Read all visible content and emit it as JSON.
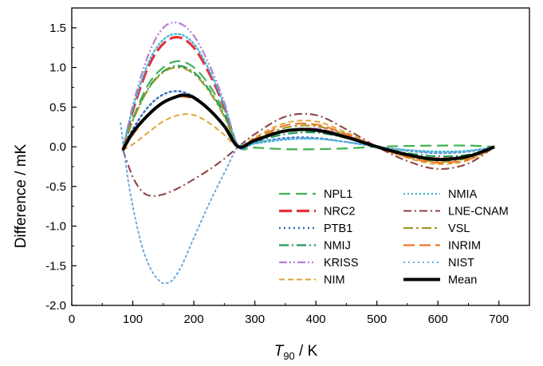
{
  "chart_data": {
    "type": "line",
    "xlabel": "T",
    "xlabel_sub": "90",
    "xlabel_unit": " / K",
    "ylabel": "Difference / mK",
    "xlim": [
      0,
      750
    ],
    "ylim": [
      -2.0,
      1.75
    ],
    "xticks": [
      0,
      100,
      200,
      300,
      400,
      500,
      600,
      700
    ],
    "yticks": [
      -2.0,
      -1.5,
      -1.0,
      -0.5,
      0.0,
      0.5,
      1.0,
      1.5
    ],
    "xtick_labels": [
      "0",
      "100",
      "200",
      "300",
      "400",
      "500",
      "600",
      "700"
    ],
    "ytick_labels": [
      "-2.0",
      "-1.5",
      "-1.0",
      "-0.5",
      "0.0",
      "0.5",
      "1.0",
      "1.5"
    ],
    "grid": false,
    "legend_placement": "bottom-right",
    "series": [
      {
        "name": "NPL1",
        "color": "#3fb34f",
        "dash": "14,7",
        "width": 2.2,
        "x": [
          83.8,
          100,
          125,
          150,
          175,
          200,
          225,
          250,
          273.16,
          300,
          350,
          400,
          450,
          500,
          550,
          600,
          650,
          692.7
        ],
        "y": [
          -0.04,
          0.35,
          0.78,
          1.0,
          1.08,
          1.0,
          0.78,
          0.44,
          0.0,
          -0.01,
          -0.03,
          -0.03,
          -0.02,
          0.0,
          0.01,
          0.015,
          0.015,
          0.0
        ]
      },
      {
        "name": "NRC2",
        "color": "#e8303a",
        "dash": "16,6",
        "width": 3.2,
        "x": [
          83.8,
          100,
          125,
          150,
          175,
          200,
          225,
          250,
          273.16,
          300,
          350,
          400,
          450,
          500,
          550,
          600,
          650,
          692.7
        ],
        "y": [
          -0.04,
          0.45,
          1.0,
          1.3,
          1.38,
          1.25,
          0.93,
          0.5,
          0.0,
          0.08,
          0.2,
          0.22,
          0.13,
          0.0,
          -0.1,
          -0.15,
          -0.12,
          0.0
        ]
      },
      {
        "name": "PTB1",
        "color": "#2f6fbd",
        "dash": "2,4",
        "width": 2.4,
        "x": [
          83.8,
          100,
          125,
          150,
          175,
          200,
          225,
          250,
          273.16,
          300,
          350,
          400,
          450,
          500,
          550,
          600,
          650,
          692.7
        ],
        "y": [
          -0.04,
          0.22,
          0.5,
          0.66,
          0.7,
          0.63,
          0.47,
          0.26,
          0.0,
          0.05,
          0.11,
          0.11,
          0.06,
          0.0,
          -0.05,
          -0.08,
          -0.06,
          0.0
        ]
      },
      {
        "name": "NMIJ",
        "color": "#1f9a56",
        "dash": "12,4,2,4",
        "width": 2.2,
        "x": [
          83.8,
          100,
          125,
          150,
          175,
          200,
          225,
          250,
          273.16,
          300,
          350,
          400,
          450,
          500,
          550,
          600,
          650,
          692.7
        ],
        "y": [
          -0.04,
          0.33,
          0.73,
          0.95,
          1.02,
          0.94,
          0.72,
          0.4,
          0.0,
          0.06,
          0.16,
          0.18,
          0.11,
          0.0,
          -0.08,
          -0.12,
          -0.1,
          0.0
        ]
      },
      {
        "name": "KRISS",
        "color": "#b77fd1",
        "dash": "10,3,2,3,2,3",
        "width": 2.2,
        "x": [
          83.8,
          100,
          125,
          150,
          175,
          200,
          225,
          250,
          273.16,
          300,
          350,
          400,
          450,
          500,
          550,
          600,
          650,
          692.7
        ],
        "y": [
          -0.04,
          0.52,
          1.15,
          1.5,
          1.56,
          1.4,
          1.04,
          0.56,
          0.0,
          0.07,
          0.2,
          0.23,
          0.14,
          0.0,
          -0.11,
          -0.17,
          -0.13,
          0.0
        ]
      },
      {
        "name": "NIM",
        "color": "#e0a53a",
        "dash": "7,4",
        "width": 2.0,
        "x": [
          83.8,
          100,
          125,
          150,
          175,
          200,
          225,
          250,
          273.16,
          300,
          350,
          400,
          450,
          500,
          550,
          600,
          650,
          692.7
        ],
        "y": [
          -0.04,
          0.03,
          0.18,
          0.32,
          0.4,
          0.4,
          0.3,
          0.15,
          0.0,
          0.12,
          0.3,
          0.32,
          0.18,
          0.0,
          -0.14,
          -0.22,
          -0.17,
          0.0
        ]
      },
      {
        "name": "NMIA",
        "color": "#3fb5d3",
        "dash": "2,3",
        "width": 2.2,
        "x": [
          83.8,
          100,
          125,
          150,
          175,
          200,
          225,
          250,
          273.16,
          300,
          350,
          400,
          450,
          500,
          550,
          600,
          650,
          692.7
        ],
        "y": [
          -0.04,
          0.48,
          1.05,
          1.35,
          1.42,
          1.3,
          0.97,
          0.52,
          0.0,
          0.04,
          0.09,
          0.1,
          0.06,
          0.0,
          -0.04,
          -0.06,
          -0.05,
          0.0
        ]
      },
      {
        "name": "LNE-CNAM",
        "color": "#8b3d3d",
        "dash": "10,4,2,4",
        "width": 2.0,
        "x": [
          83.8,
          100,
          115,
          130,
          150,
          175,
          200,
          225,
          250,
          273.16,
          300,
          350,
          400,
          450,
          500,
          550,
          600,
          650,
          692.7
        ],
        "y": [
          -0.04,
          -0.38,
          -0.56,
          -0.62,
          -0.6,
          -0.52,
          -0.41,
          -0.29,
          -0.15,
          0.0,
          0.16,
          0.38,
          0.4,
          0.22,
          0.0,
          -0.18,
          -0.28,
          -0.21,
          0.0
        ]
      },
      {
        "name": "VSL",
        "color": "#9a9a2a",
        "dash": "12,4,3,4",
        "width": 2.2,
        "x": [
          83.8,
          100,
          125,
          150,
          175,
          200,
          225,
          250,
          273.16,
          300,
          350,
          400,
          450,
          500,
          550,
          600,
          650,
          692.7
        ],
        "y": [
          -0.04,
          0.33,
          0.72,
          0.94,
          1.0,
          0.92,
          0.7,
          0.38,
          0.0,
          0.09,
          0.24,
          0.26,
          0.15,
          0.0,
          -0.12,
          -0.19,
          -0.14,
          0.0
        ]
      },
      {
        "name": "INRIM",
        "color": "#f0782a",
        "dash": "14,6",
        "width": 2.2,
        "x": [
          83.8,
          100,
          125,
          150,
          175,
          200,
          225,
          250,
          273.16,
          300,
          350,
          400,
          450,
          500,
          550,
          600,
          650,
          692.7
        ],
        "y": [
          -0.04,
          0.15,
          0.4,
          0.56,
          0.63,
          0.6,
          0.46,
          0.25,
          0.0,
          0.1,
          0.27,
          0.28,
          0.16,
          0.0,
          -0.13,
          -0.2,
          -0.16,
          0.0
        ]
      },
      {
        "name": "NIST",
        "color": "#6aa9e0",
        "dash": "2,4",
        "width": 2.0,
        "x": [
          80,
          90,
          100,
          115,
          130,
          145,
          155,
          165,
          180,
          200,
          225,
          250,
          273.16,
          300,
          350,
          400,
          450,
          500,
          550,
          600,
          650,
          692.7
        ],
        "y": [
          0.3,
          -0.3,
          -0.75,
          -1.25,
          -1.55,
          -1.7,
          -1.72,
          -1.68,
          -1.5,
          -1.15,
          -0.72,
          -0.33,
          0.0,
          0.06,
          0.1,
          0.1,
          0.06,
          0.0,
          -0.05,
          -0.08,
          -0.06,
          0.0
        ]
      },
      {
        "name": "Mean",
        "color": "#000000",
        "dash": "",
        "width": 4.0,
        "x": [
          83.8,
          100,
          125,
          150,
          175,
          185,
          200,
          225,
          250,
          273.16,
          300,
          350,
          400,
          450,
          500,
          550,
          600,
          650,
          692.7
        ],
        "y": [
          -0.04,
          0.18,
          0.4,
          0.56,
          0.64,
          0.65,
          0.62,
          0.47,
          0.26,
          0.0,
          0.08,
          0.2,
          0.21,
          0.12,
          0.0,
          -0.1,
          -0.16,
          -0.12,
          0.0
        ]
      }
    ]
  }
}
